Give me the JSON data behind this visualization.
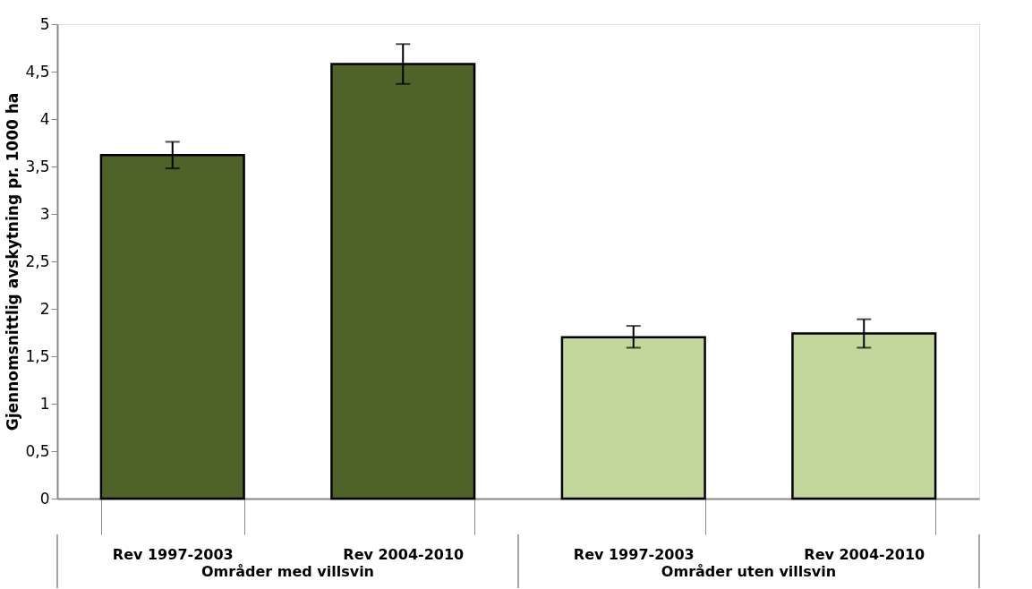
{
  "chart_data": {
    "type": "bar",
    "ylabel": "Gjennomsnittlig avskytning pr. 1000 ha",
    "categories": [
      "Rev 1997-2003",
      "Rev 2004-2010",
      "Rev 1997-2003",
      "Rev 2004-2010"
    ],
    "values": [
      3.62,
      4.58,
      1.7,
      1.74
    ],
    "errors": [
      [
        3.48,
        3.76
      ],
      [
        4.37,
        4.79
      ],
      [
        1.59,
        1.82
      ],
      [
        1.59,
        1.89
      ]
    ],
    "colors": [
      "#4f6228",
      "#4f6228",
      "#c3d69b",
      "#c3d69b"
    ],
    "ylim": [
      0,
      5
    ],
    "yticks": [
      {
        "value": 0,
        "label": "0"
      },
      {
        "value": 0.5,
        "label": "0,5"
      },
      {
        "value": 1,
        "label": "1"
      },
      {
        "value": 1.5,
        "label": "1,5"
      },
      {
        "value": 2,
        "label": "2"
      },
      {
        "value": 2.5,
        "label": "2,5"
      },
      {
        "value": 3,
        "label": "3"
      },
      {
        "value": 3.5,
        "label": "3,5"
      },
      {
        "value": 4,
        "label": "4"
      },
      {
        "value": 4.5,
        "label": "4,5"
      },
      {
        "value": 5,
        "label": "5"
      }
    ],
    "annotations": [
      "Områder med villsvin",
      "Områder uten villsvin"
    ],
    "grid": false
  }
}
